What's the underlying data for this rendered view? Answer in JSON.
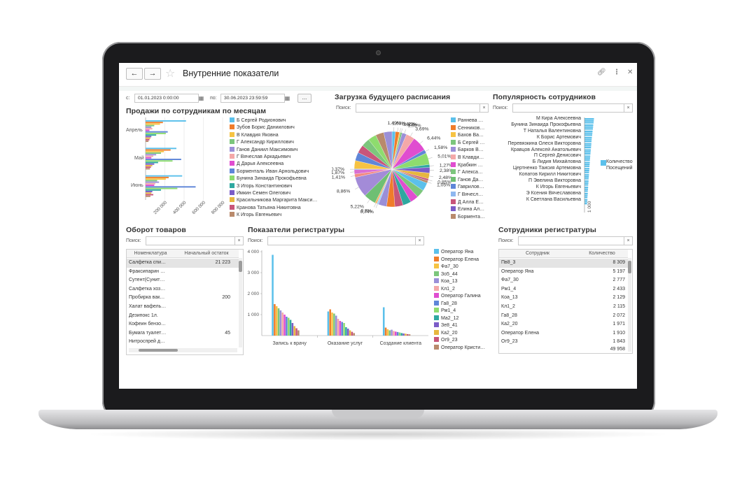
{
  "window": {
    "title": "Внутренние показатели",
    "back": "←",
    "forward": "→"
  },
  "filters": {
    "from_label": "с:",
    "from_value": "01.01.2023  0:00:00",
    "to_label": "по:",
    "to_value": "30.06.2023 23:59:59",
    "more_label": "..."
  },
  "search_label": "Поиск:",
  "clear_label": "×",
  "sales": {
    "title": "Продажи по сотрудникам по месяцам",
    "chart_data": {
      "type": "bar",
      "orientation": "horizontal",
      "categories": [
        "Апрель",
        "Май",
        "Июнь"
      ],
      "x_ticks": [
        "200 000",
        "400 000",
        "600 000",
        "800 000"
      ],
      "xlim": [
        0,
        800000
      ],
      "grid": true,
      "legend_position": "right",
      "series": [
        {
          "name": "Б Сергей Родионович",
          "color": "#5bc0eb",
          "values": [
            420000,
            320000,
            380000
          ]
        },
        {
          "name": "Зубов Борис Даниилович",
          "color": "#f07c2a",
          "values": [
            180000,
            260000,
            240000
          ]
        },
        {
          "name": "В Клавдия Яковна",
          "color": "#f6c343",
          "values": [
            150000,
            190000,
            210000
          ]
        },
        {
          "name": "Г Александр Кириллович",
          "color": "#7cc67c",
          "values": [
            90000,
            160000,
            120000
          ]
        },
        {
          "name": "Ганов Даниил Максимович",
          "color": "#9b8fd8",
          "values": [
            60000,
            110000,
            140000
          ]
        },
        {
          "name": "Г Вячеслав Аркадьевич",
          "color": "#f4a8a8",
          "values": [
            70000,
            80000,
            100000
          ]
        },
        {
          "name": "Д Дарья Алексеевна",
          "color": "#e04dd0",
          "values": [
            40000,
            60000,
            90000
          ]
        },
        {
          "name": "Борменталь Иван Арнольдович",
          "color": "#5f86d8",
          "values": [
            230000,
            370000,
            520000
          ]
        },
        {
          "name": "Бунина Зинаида Прокофьевна",
          "color": "#8edc6e",
          "values": [
            210000,
            280000,
            330000
          ]
        },
        {
          "name": "З Игорь Константинович",
          "color": "#2fa8a0",
          "values": [
            110000,
            130000,
            160000
          ]
        },
        {
          "name": "Имкин Семен Олегович",
          "color": "#7b5cc7",
          "values": [
            60000,
            90000,
            70000
          ]
        },
        {
          "name": "Красильникова Маргарита Макси…",
          "color": "#e7b63f",
          "values": [
            50000,
            70000,
            60000
          ]
        },
        {
          "name": "Кранова Татьяна Никитовна",
          "color": "#c8557a",
          "values": [
            40000,
            55000,
            80000
          ]
        },
        {
          "name": "К Игорь Евгеньевич",
          "color": "#b98a6c",
          "values": [
            30000,
            45000,
            50000
          ]
        }
      ]
    }
  },
  "schedule": {
    "title": "Загрузка будущего расписания",
    "chart_data": {
      "type": "pie",
      "legend_position": "right",
      "slices": [
        {
          "label": "1,49%",
          "value": 1.49,
          "color": "#5bc0eb"
        },
        {
          "label": "1,63%",
          "value": 1.63,
          "color": "#f07c2a"
        },
        {
          "label": "0,42%",
          "value": 0.42,
          "color": "#f6c343"
        },
        {
          "label": "0,82%",
          "value": 0.82,
          "color": "#7cc67c"
        },
        {
          "label": "1,93%",
          "value": 1.93,
          "color": "#9b8fd8"
        },
        {
          "label": "3,69%",
          "value": 3.69,
          "color": "#f4a8a8"
        },
        {
          "label": "6,44%",
          "value": 6.44,
          "color": "#e04dd0"
        },
        {
          "label": "1,58%",
          "value": 1.58,
          "color": "#5f86d8"
        },
        {
          "label": "5,01%",
          "value": 5.01,
          "color": "#8edc6e"
        },
        {
          "label": "1,27%",
          "value": 1.27,
          "color": "#2fa8a0"
        },
        {
          "label": "2,38%",
          "value": 2.38,
          "color": "#7b5cc7"
        },
        {
          "label": "2,48%",
          "value": 2.48,
          "color": "#e7b63f"
        },
        {
          "label": "0,85%",
          "value": 0.85,
          "color": "#c8557a"
        },
        {
          "label": "1,05%",
          "value": 1.05,
          "color": "#b98a6c"
        },
        {
          "label": "0,74%",
          "value": 0.74,
          "color": "#9ad0f5"
        },
        {
          "label": "0,8%",
          "value": 0.8,
          "color": "#f7b267"
        },
        {
          "label": "5,22%",
          "value": 5.22,
          "color": "#6fbf73"
        },
        {
          "label": "8,86%",
          "value": 8.86,
          "color": "#a38bd8"
        },
        {
          "label": "1,41%",
          "value": 1.41,
          "color": "#f28b82"
        },
        {
          "label": "1,87%",
          "value": 1.87,
          "color": "#d96fd1"
        },
        {
          "label": "0,37%",
          "value": 0.37,
          "color": "#78a1e6"
        }
      ],
      "legend": [
        {
          "name": "Раннева …",
          "color": "#5bc0eb"
        },
        {
          "name": "Сенников…",
          "color": "#f07c2a"
        },
        {
          "name": "Бахов Ва…",
          "color": "#f6c343"
        },
        {
          "name": "Б Сергей …",
          "color": "#7cc67c"
        },
        {
          "name": "Барков В…",
          "color": "#9b8fd8"
        },
        {
          "name": "В Клавди…",
          "color": "#f4a8a8"
        },
        {
          "name": "Крабкин …",
          "color": "#e04dd0"
        },
        {
          "name": "Г Алекса…",
          "color": "#7cc67c"
        },
        {
          "name": "Ганов Да…",
          "color": "#6fbf73"
        },
        {
          "name": "Гаврилов…",
          "color": "#5f86d8"
        },
        {
          "name": "Г Вячесл…",
          "color": "#8fb8f0"
        },
        {
          "name": "Д Алла Е…",
          "color": "#c8557a"
        },
        {
          "name": "Елина Ал…",
          "color": "#7b5cc7"
        },
        {
          "name": "Бормента…",
          "color": "#b98a6c"
        }
      ]
    }
  },
  "popularity": {
    "title": "Популярность сотрудников",
    "legend_label": "КоличествоПосещений",
    "legend_color": "#5bc0eb",
    "chart_data": {
      "type": "bar",
      "orientation": "horizontal",
      "x_ticks": [
        "1 000"
      ],
      "categories": [
        "М Кира Алексеевна",
        "Бунина Зинаида Прокофьевна",
        "Т Наталья Валентиновна",
        "К Борис Артемович",
        "Перевязкина Олеся Викторовна",
        "Кравцов Алексей Анатольевич",
        "П Сергей Денисович",
        "Б Лидия Михайловна",
        "Цертненко Таисия Артемовна",
        "Копатов Кирилл Никитович",
        "П Эвелина Викторовна",
        "К Игорь Евгеньевич",
        "Э Ксения Вячеславовна",
        "К Светлана Васильевна"
      ],
      "values": [
        1350,
        1250,
        1150,
        1050,
        980,
        900,
        820,
        760,
        700,
        640,
        580,
        520,
        470,
        420
      ]
    }
  },
  "turnover": {
    "title": "Оборот товаров",
    "columns": [
      "Номенклатура",
      "Начальный остаток"
    ],
    "rows": [
      {
        "name": "Салфетка спи…",
        "value": "21 223"
      },
      {
        "name": "Фраксипарин …",
        "value": ""
      },
      {
        "name": "Сутент(Сунит…",
        "value": ""
      },
      {
        "name": "Салфетка хоз…",
        "value": ""
      },
      {
        "name": "Пробирка вак…",
        "value": "200"
      },
      {
        "name": "Халат вафель…",
        "value": ""
      },
      {
        "name": "Дезипокс 1л.",
        "value": ""
      },
      {
        "name": "Кофеин бензо…",
        "value": ""
      },
      {
        "name": "Бумага туалет…",
        "value": "45"
      },
      {
        "name": "Нитроспрей д…",
        "value": ""
      }
    ]
  },
  "registry": {
    "title": "Показатели регистратуры",
    "chart_data": {
      "type": "bar",
      "categories": [
        "Запись к врачу",
        "Оказание услуг",
        "Создание клиента"
      ],
      "y_ticks": [
        "1 000",
        "2 000",
        "3 000",
        "4 000"
      ],
      "ylim": [
        0,
        4000
      ],
      "legend_position": "right",
      "series": [
        {
          "name": "Оператор Яна",
          "color": "#5bc0eb",
          "values": [
            3850,
            1150,
            1350
          ]
        },
        {
          "name": "Оператор Елена",
          "color": "#f07c2a",
          "values": [
            1500,
            1250,
            380
          ]
        },
        {
          "name": "Фа7_30",
          "color": "#f6c343",
          "values": [
            1400,
            1100,
            300
          ]
        },
        {
          "name": "Зо5_44",
          "color": "#7cc67c",
          "values": [
            1300,
            1050,
            250
          ]
        },
        {
          "name": "Коа_13",
          "color": "#9b8fd8",
          "values": [
            1200,
            950,
            280
          ]
        },
        {
          "name": "Кл1_2",
          "color": "#f4a8a8",
          "values": [
            1100,
            800,
            220
          ]
        },
        {
          "name": "Оператор Галина",
          "color": "#e04dd0",
          "values": [
            1000,
            700,
            190
          ]
        },
        {
          "name": "Га8_28",
          "color": "#5f86d8",
          "values": [
            900,
            650,
            170
          ]
        },
        {
          "name": "Рм1_4",
          "color": "#8edc6e",
          "values": [
            850,
            600,
            150
          ]
        },
        {
          "name": "Ма2_12",
          "color": "#2fa8a0",
          "values": [
            750,
            400,
            120
          ]
        },
        {
          "name": "Зе8_41",
          "color": "#7b5cc7",
          "values": [
            600,
            330,
            100
          ]
        },
        {
          "name": "Ка2_20",
          "color": "#e7b63f",
          "values": [
            450,
            250,
            90
          ]
        },
        {
          "name": "Ог9_23",
          "color": "#c8557a",
          "values": [
            350,
            180,
            70
          ]
        },
        {
          "name": "Оператор Кристи…",
          "color": "#b98a6c",
          "values": [
            250,
            120,
            60
          ]
        }
      ]
    }
  },
  "staff": {
    "title": "Сотрудники регистратуры",
    "columns": [
      "Сотрудник",
      "Количество"
    ],
    "rows": [
      {
        "name": "Пв8_3",
        "value": "8 309"
      },
      {
        "name": "Оператор Яна",
        "value": "5 197"
      },
      {
        "name": "Фа7_30",
        "value": "2 777"
      },
      {
        "name": "Рм1_4",
        "value": "2 433"
      },
      {
        "name": "Коа_13",
        "value": "2 129"
      },
      {
        "name": "Кл1_2",
        "value": "2 115"
      },
      {
        "name": "Га8_28",
        "value": "2 072"
      },
      {
        "name": "Ка2_20",
        "value": "1 971"
      },
      {
        "name": "Оператор Елена",
        "value": "1 910"
      },
      {
        "name": "Ог9_23",
        "value": "1 843"
      }
    ],
    "total": "49 958"
  }
}
